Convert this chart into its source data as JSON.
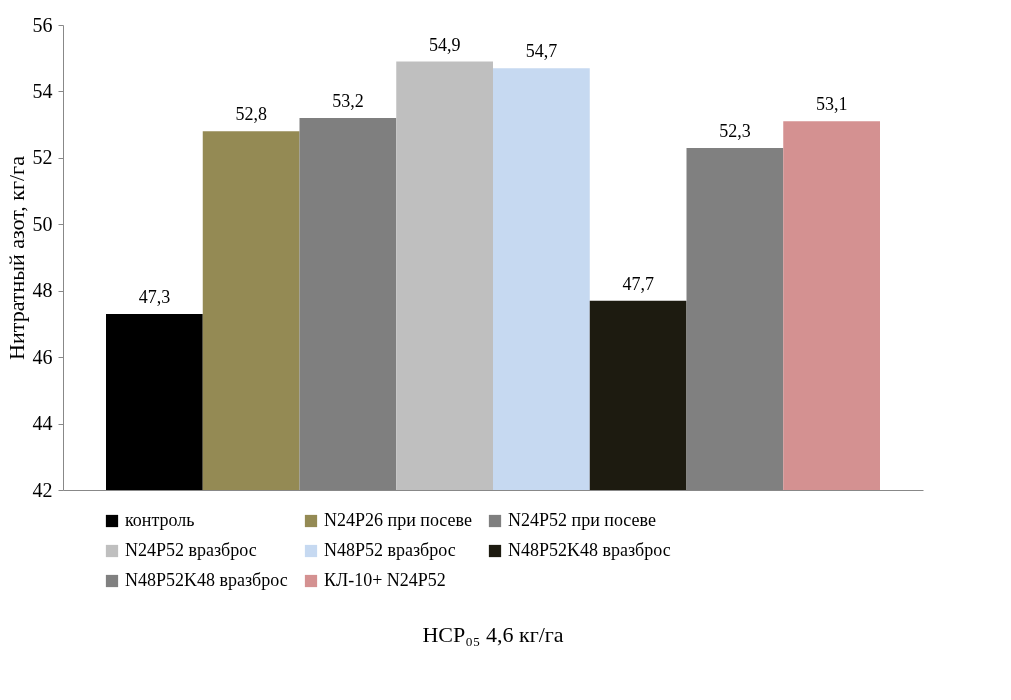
{
  "chart_data": {
    "type": "bar",
    "categories": [
      null
    ],
    "ylabel": "Нитратный азот, кг/га",
    "annotations": [
      "НСР₀₅ 4,6 кг/га"
    ],
    "ylim": [
      42,
      56
    ],
    "yticks": [
      42,
      44,
      46,
      48,
      50,
      52,
      54,
      56
    ],
    "grid": false,
    "legend": "bottom",
    "tick_labels": "y",
    "series": [
      {
        "name": "контроль",
        "color": "#000000",
        "values": [
          47.3
        ],
        "value_labels": [
          "47,3"
        ]
      },
      {
        "name": "N24P26 при посеве",
        "color": "#948a54",
        "values": [
          52.8
        ],
        "value_labels": [
          "52,8"
        ]
      },
      {
        "name": "N24P52 при посеве",
        "color": "#7f7f7f",
        "values": [
          53.2
        ],
        "value_labels": [
          "53,2"
        ]
      },
      {
        "name": "N24P52 вразброс",
        "color": "#bfbfbf",
        "values": [
          54.9
        ],
        "value_labels": [
          "54,9"
        ]
      },
      {
        "name": "N48P52 вразброс",
        "color": "#c6d9f1",
        "values": [
          54.7
        ],
        "value_labels": [
          "54,7"
        ]
      },
      {
        "name": "N48P52K48 вразброс",
        "color": "#1d1b10",
        "values": [
          47.7
        ],
        "value_labels": [
          "47,7"
        ]
      },
      {
        "name": "N48P52K48 вразброс",
        "color": "#808080",
        "values": [
          52.3
        ],
        "value_labels": [
          "52,3"
        ]
      },
      {
        "name": "КЛ-10+ N24P52",
        "color": "#d49191",
        "values": [
          53.1
        ],
        "value_labels": [
          "53,1"
        ]
      }
    ]
  }
}
